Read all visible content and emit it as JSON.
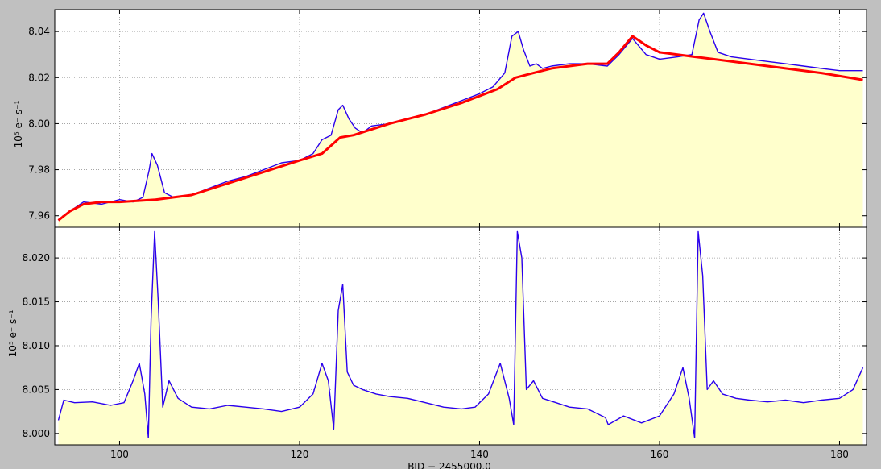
{
  "figure": {
    "background": "#c0c0c0"
  },
  "colors": {
    "flux": "#2a00ee",
    "fit": "#ff0000",
    "fill": "#ffffcc",
    "grid": "#999999"
  },
  "xlabel": "BJD − 2455000.0",
  "chart_data": [
    {
      "type": "line",
      "panel": "top",
      "ylabel": "10⁵ e⁻ s⁻¹",
      "xlim": [
        92.8,
        183.0
      ],
      "ylim": [
        7.955,
        8.0495
      ],
      "xticks": [
        100,
        120,
        140,
        160,
        180
      ],
      "yticks": [
        7.96,
        7.98,
        8.0,
        8.02,
        8.04
      ],
      "ytick_labels": [
        "7.96",
        "7.98",
        "8.00",
        "8.02",
        "8.04"
      ],
      "grid": true,
      "series": [
        {
          "role": "flux",
          "x": [
            93.2,
            94.5,
            96,
            98,
            100,
            101.5,
            102.6,
            103.3,
            103.6,
            104.2,
            105,
            106,
            108,
            110,
            112,
            114,
            116,
            118,
            120,
            121.5,
            122.5,
            123.5,
            124.3,
            124.8,
            125.5,
            126.2,
            127,
            128,
            130,
            132,
            134,
            136,
            138,
            140,
            141.5,
            142.8,
            143.6,
            144.3,
            144.9,
            145.6,
            146.3,
            147,
            148,
            150,
            152,
            154.2,
            155.5,
            157,
            158.5,
            160,
            162,
            163.6,
            164.4,
            164.9,
            165.6,
            166.5,
            168,
            170,
            172,
            174,
            176,
            178,
            180,
            182.6
          ],
          "y": [
            7.958,
            7.962,
            7.966,
            7.965,
            7.967,
            7.966,
            7.968,
            7.98,
            7.987,
            7.982,
            7.97,
            7.968,
            7.969,
            7.972,
            7.975,
            7.977,
            7.98,
            7.983,
            7.984,
            7.987,
            7.993,
            7.995,
            8.006,
            8.008,
            8.002,
            7.998,
            7.996,
            7.999,
            8.0,
            8.002,
            8.004,
            8.007,
            8.01,
            8.013,
            8.016,
            8.022,
            8.038,
            8.04,
            8.032,
            8.025,
            8.026,
            8.024,
            8.025,
            8.026,
            8.026,
            8.025,
            8.03,
            8.037,
            8.03,
            8.028,
            8.029,
            8.03,
            8.045,
            8.048,
            8.04,
            8.031,
            8.029,
            8.028,
            8.027,
            8.026,
            8.025,
            8.024,
            8.023,
            8.023
          ]
        },
        {
          "role": "fit",
          "x": [
            93.2,
            94.5,
            96,
            98,
            100,
            104,
            108,
            112,
            116,
            120,
            122.5,
            124.5,
            126,
            130,
            134,
            138,
            142,
            144,
            146,
            148,
            150,
            152,
            154.2,
            155.5,
            157,
            158.5,
            160,
            162,
            164,
            166,
            170,
            174,
            178,
            182.6
          ],
          "y": [
            7.958,
            7.962,
            7.965,
            7.966,
            7.966,
            7.967,
            7.969,
            7.974,
            7.979,
            7.984,
            7.987,
            7.994,
            7.995,
            8.0,
            8.004,
            8.009,
            8.015,
            8.02,
            8.022,
            8.024,
            8.025,
            8.026,
            8.026,
            8.031,
            8.038,
            8.034,
            8.031,
            8.03,
            8.029,
            8.028,
            8.026,
            8.024,
            8.022,
            8.019
          ]
        }
      ]
    },
    {
      "type": "line",
      "panel": "bottom",
      "ylabel": "10⁵ e⁻ s⁻¹",
      "xlim": [
        92.8,
        183.0
      ],
      "ylim": [
        7.9987,
        8.0235
      ],
      "xticks": [
        100,
        120,
        140,
        160,
        180
      ],
      "xtick_labels": [
        "100",
        "120",
        "140",
        "160",
        "180"
      ],
      "yticks": [
        8.0,
        8.005,
        8.01,
        8.015,
        8.02
      ],
      "ytick_labels": [
        "8.000",
        "8.005",
        "8.010",
        "8.015",
        "8.020"
      ],
      "grid": true,
      "series": [
        {
          "role": "detrended",
          "x": [
            93.2,
            93.8,
            95,
            97,
            99,
            100.5,
            101.5,
            102.2,
            102.8,
            103.2,
            103.5,
            103.9,
            104.3,
            104.8,
            105.5,
            106.5,
            108,
            110,
            112,
            114,
            116,
            118,
            120,
            121.5,
            122.5,
            123.2,
            123.8,
            124.3,
            124.8,
            125.3,
            126,
            127,
            128.5,
            130,
            132,
            134,
            136,
            138,
            139.5,
            141,
            142.3,
            143.3,
            143.8,
            144.2,
            144.7,
            145.2,
            146,
            147,
            148.5,
            150,
            152,
            154,
            154.3,
            156,
            158,
            160,
            161.6,
            162.6,
            163.3,
            163.9,
            164.3,
            164.8,
            165.3,
            166,
            167,
            168.5,
            170,
            172,
            174,
            176,
            178,
            180,
            181.5,
            182.6
          ],
          "y": [
            8.0015,
            8.0038,
            8.0035,
            8.0036,
            8.0032,
            8.0035,
            8.006,
            8.008,
            8.0045,
            7.9995,
            8.013,
            8.023,
            8.015,
            8.003,
            8.006,
            8.004,
            8.003,
            8.0028,
            8.0032,
            8.003,
            8.0028,
            8.0025,
            8.003,
            8.0045,
            8.008,
            8.006,
            8.0005,
            8.014,
            8.017,
            8.007,
            8.0055,
            8.005,
            8.0045,
            8.0042,
            8.004,
            8.0035,
            8.003,
            8.0028,
            8.003,
            8.0045,
            8.008,
            8.004,
            8.001,
            8.023,
            8.02,
            8.005,
            8.006,
            8.004,
            8.0035,
            8.003,
            8.0028,
            8.0018,
            8.001,
            8.002,
            8.0012,
            8.002,
            8.0045,
            8.0075,
            8.004,
            7.9995,
            8.023,
            8.018,
            8.005,
            8.006,
            8.0045,
            8.004,
            8.0038,
            8.0036,
            8.0038,
            8.0035,
            8.0038,
            8.004,
            8.005,
            8.0075
          ]
        }
      ]
    }
  ]
}
